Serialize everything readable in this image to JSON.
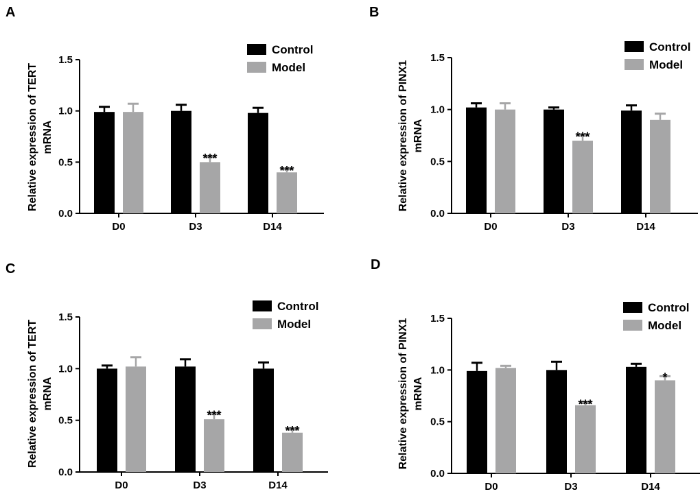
{
  "colors": {
    "control": "#000000",
    "model": "#a6a6a7"
  },
  "chart_data": [
    {
      "panel": "A",
      "type": "bar",
      "ylabel": [
        "Relative expression of TERT",
        "mRNA"
      ],
      "categories": [
        "D0",
        "D3",
        "D14"
      ],
      "yticks": [
        "0.0",
        "0.5",
        "1.0",
        "1.5"
      ],
      "ylim": [
        0,
        1.5
      ],
      "series": [
        {
          "name": "Control",
          "values": [
            0.99,
            1.0,
            0.98
          ],
          "errors": [
            0.05,
            0.06,
            0.05
          ]
        },
        {
          "name": "Model",
          "values": [
            0.99,
            0.5,
            0.4
          ],
          "errors": [
            0.08,
            0.05,
            0.03
          ]
        }
      ],
      "annotations": [
        {
          "category": "D3",
          "series": "Model",
          "text": "***"
        },
        {
          "category": "D14",
          "series": "Model",
          "text": "***"
        }
      ]
    },
    {
      "panel": "B",
      "type": "bar",
      "ylabel": [
        "Relative expression of PINX1",
        "mRNA"
      ],
      "categories": [
        "D0",
        "D3",
        "D14"
      ],
      "yticks": [
        "0.0",
        "0.5",
        "1.0",
        "1.5"
      ],
      "ylim": [
        0,
        1.5
      ],
      "series": [
        {
          "name": "Control",
          "values": [
            1.02,
            1.0,
            0.99
          ],
          "errors": [
            0.04,
            0.02,
            0.05
          ]
        },
        {
          "name": "Model",
          "values": [
            1.0,
            0.7,
            0.9
          ],
          "errors": [
            0.06,
            0.05,
            0.06
          ]
        }
      ],
      "annotations": [
        {
          "category": "D3",
          "series": "Model",
          "text": "***"
        }
      ]
    },
    {
      "panel": "C",
      "type": "bar",
      "ylabel": [
        "Relative expression of TERT",
        "mRNA"
      ],
      "categories": [
        "D0",
        "D3",
        "D14"
      ],
      "yticks": [
        "0.0",
        "0.5",
        "1.0",
        "1.5"
      ],
      "ylim": [
        0,
        1.5
      ],
      "series": [
        {
          "name": "Control",
          "values": [
            1.0,
            1.02,
            1.0
          ],
          "errors": [
            0.03,
            0.07,
            0.06
          ]
        },
        {
          "name": "Model",
          "values": [
            1.02,
            0.51,
            0.38
          ],
          "errors": [
            0.09,
            0.05,
            0.03
          ]
        }
      ],
      "annotations": [
        {
          "category": "D3",
          "series": "Model",
          "text": "***"
        },
        {
          "category": "D14",
          "series": "Model",
          "text": "***"
        }
      ]
    },
    {
      "panel": "D",
      "type": "bar",
      "ylabel": [
        "Relative expression of PINX1",
        "mRNA"
      ],
      "categories": [
        "D0",
        "D3",
        "D14"
      ],
      "yticks": [
        "0.0",
        "0.5",
        "1.0",
        "1.5"
      ],
      "ylim": [
        0,
        1.5
      ],
      "series": [
        {
          "name": "Control",
          "values": [
            0.99,
            1.0,
            1.03
          ],
          "errors": [
            0.08,
            0.08,
            0.03
          ]
        },
        {
          "name": "Model",
          "values": [
            1.02,
            0.66,
            0.9
          ],
          "errors": [
            0.02,
            0.02,
            0.04
          ]
        }
      ],
      "annotations": [
        {
          "category": "D3",
          "series": "Model",
          "text": "***"
        },
        {
          "category": "D14",
          "series": "Model",
          "text": "*"
        }
      ]
    }
  ]
}
